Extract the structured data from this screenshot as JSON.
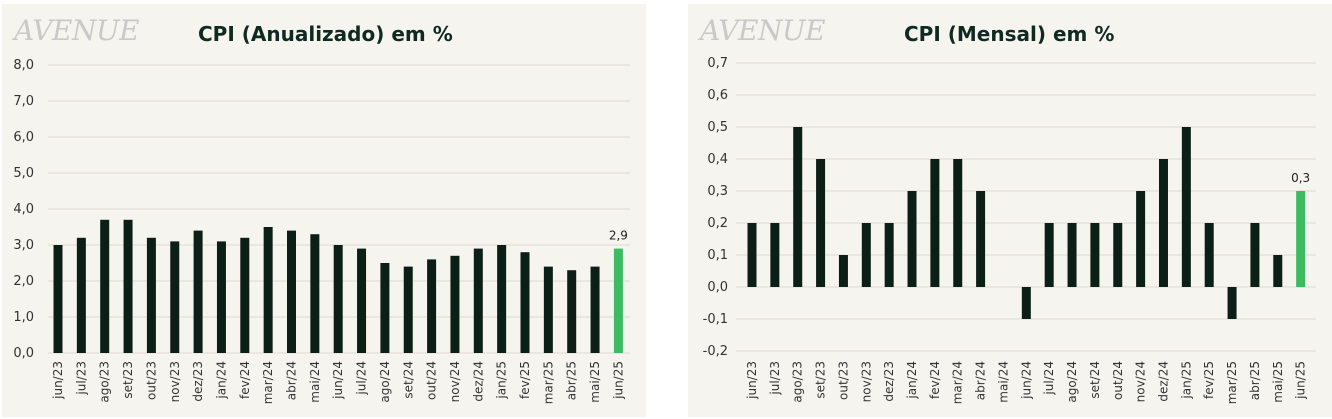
{
  "logo_text": "AVENUE",
  "chart_data": [
    {
      "type": "bar",
      "title": "CPI (Anualizado) em %",
      "xlabel": "",
      "ylabel": "",
      "ylim": [
        0,
        8
      ],
      "ytick_labels": [
        "0,0",
        "1,0",
        "2,0",
        "3,0",
        "4,0",
        "5,0",
        "6,0",
        "7,0",
        "8,0"
      ],
      "categories": [
        "jun/23",
        "jul/23",
        "ago/23",
        "set/23",
        "out/23",
        "nov/23",
        "dez/23",
        "jan/24",
        "fev/24",
        "mar/24",
        "abr/24",
        "mai/24",
        "jun/24",
        "jul/24",
        "ago/24",
        "set/24",
        "out/24",
        "nov/24",
        "dez/24",
        "jan/25",
        "fev/25",
        "mar/25",
        "abr/25",
        "mai/25",
        "jun/25"
      ],
      "values": [
        3.0,
        3.2,
        3.7,
        3.7,
        3.2,
        3.1,
        3.4,
        3.1,
        3.2,
        3.5,
        3.4,
        3.3,
        3.0,
        2.9,
        2.5,
        2.4,
        2.6,
        2.7,
        2.9,
        3.0,
        2.8,
        2.4,
        2.3,
        2.4,
        2.9
      ],
      "highlight_index": 24,
      "highlight_label": "2,9",
      "bar_color": "#0b1f17",
      "highlight_color": "#3dbb62",
      "grid": true
    },
    {
      "type": "bar",
      "title": "CPI (Mensal) em %",
      "xlabel": "",
      "ylabel": "",
      "ylim": [
        -0.2,
        0.7
      ],
      "ytick_labels": [
        "-0,2",
        "-0,1",
        "0,0",
        "0,1",
        "0,2",
        "0,3",
        "0,4",
        "0,5",
        "0,6",
        "0,7"
      ],
      "categories": [
        "jun/23",
        "jul/23",
        "ago/23",
        "set/23",
        "out/23",
        "nov/23",
        "dez/23",
        "jan/24",
        "fev/24",
        "mar/24",
        "abr/24",
        "mai/24",
        "jun/24",
        "jul/24",
        "ago/24",
        "set/24",
        "out/24",
        "nov/24",
        "dez/24",
        "jan/25",
        "fev/25",
        "mar/25",
        "abr/25",
        "mai/25",
        "jun/25"
      ],
      "values": [
        0.2,
        0.2,
        0.5,
        0.4,
        0.1,
        0.2,
        0.2,
        0.3,
        0.4,
        0.4,
        0.3,
        0.0,
        -0.1,
        0.2,
        0.2,
        0.2,
        0.2,
        0.3,
        0.4,
        0.5,
        0.2,
        -0.1,
        0.2,
        0.1,
        0.3
      ],
      "highlight_index": 24,
      "highlight_label": "0,3",
      "bar_color": "#0b1f17",
      "highlight_color": "#3dbb62",
      "grid": true
    }
  ]
}
